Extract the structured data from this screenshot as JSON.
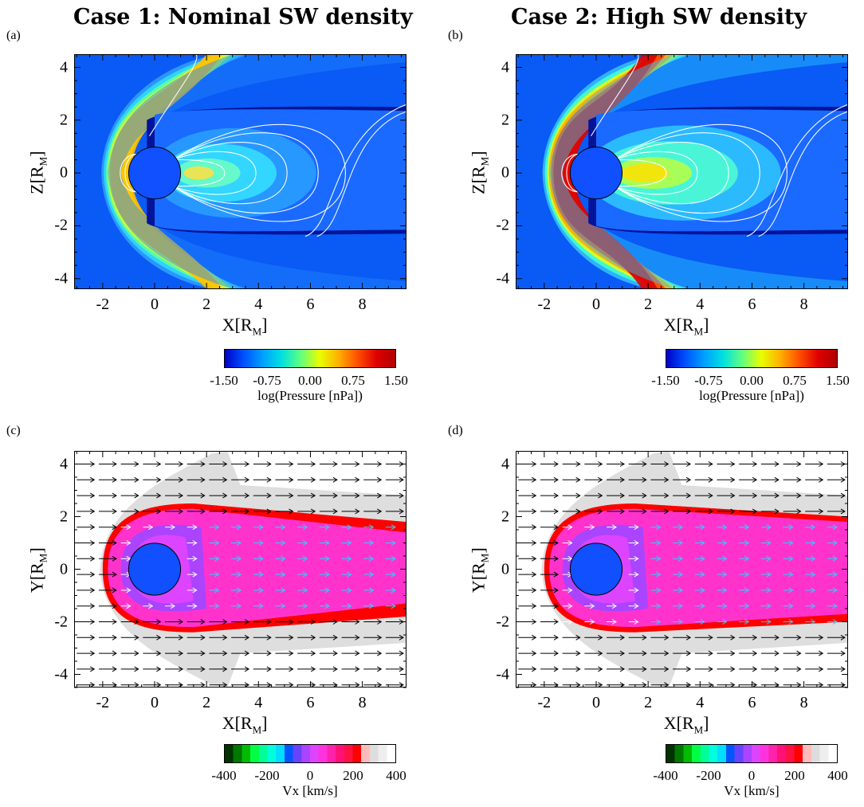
{
  "titles": {
    "case1": "Case 1: Nominal SW density",
    "case2": "Case 2: High SW density"
  },
  "colorbars": {
    "pressure": {
      "ticks": [
        "-1.50",
        "-0.75",
        "0.00",
        "0.75",
        "1.50"
      ],
      "title": "log(Pressure [nPa])",
      "colors": [
        "#0000c8",
        "#0050ff",
        "#00a0ff",
        "#00e0e0",
        "#60ff80",
        "#e8ff00",
        "#ffb000",
        "#ff5000",
        "#e00000",
        "#b00000"
      ]
    },
    "velocity": {
      "ticks": [
        "-400",
        "-200",
        "0",
        "200",
        "400"
      ],
      "title": "Vx [km/s]",
      "colors": [
        "#003300",
        "#007700",
        "#00bb00",
        "#00ff44",
        "#00ff99",
        "#00ffdd",
        "#00ddff",
        "#0055ff",
        "#6644ff",
        "#aa44ff",
        "#dd44ff",
        "#ff33dd",
        "#ff22aa",
        "#ff1177",
        "#ff1144",
        "#ff0000",
        "#ffbbbb",
        "#dddddd",
        "#eeeeee",
        "#ffffff"
      ]
    }
  },
  "chart_data": [
    {
      "id": "a",
      "panel_label": "(a)",
      "type": "heatmap",
      "title": "Case 1: Nominal SW density",
      "xlabel": "X[R_M]",
      "ylabel": "Z[R_M]",
      "xlim": [
        -3.1,
        9.7
      ],
      "ylim": [
        -4.4,
        4.5
      ],
      "xticks": [
        -2,
        0,
        2,
        4,
        6,
        8
      ],
      "yticks": [
        -4,
        -2,
        0,
        2,
        4
      ],
      "quantity": "log(Pressure [nPa])",
      "color_range": [
        -1.5,
        1.5
      ],
      "planet_radius": 1,
      "planet_center": [
        0,
        0
      ]
    },
    {
      "id": "b",
      "panel_label": "(b)",
      "type": "heatmap",
      "title": "Case 2: High SW density",
      "xlabel": "X[R_M]",
      "ylabel": "Z[R_M]",
      "xlim": [
        -3.1,
        9.7
      ],
      "ylim": [
        -4.4,
        4.5
      ],
      "xticks": [
        -2,
        0,
        2,
        4,
        6,
        8
      ],
      "yticks": [
        -4,
        -2,
        0,
        2,
        4
      ],
      "quantity": "log(Pressure [nPa])",
      "color_range": [
        -1.5,
        1.5
      ],
      "planet_radius": 1,
      "planet_center": [
        0,
        0
      ]
    },
    {
      "id": "c",
      "panel_label": "(c)",
      "type": "heatmap",
      "xlabel": "X[R_M]",
      "ylabel": "Y[R_M]",
      "xlim": [
        -3.1,
        9.7
      ],
      "ylim": [
        -4.5,
        4.5
      ],
      "xticks": [
        -2,
        0,
        2,
        4,
        6,
        8
      ],
      "yticks": [
        -4,
        -2,
        0,
        2,
        4
      ],
      "quantity": "Vx [km/s]",
      "color_range": [
        -400,
        400
      ],
      "planet_radius": 1,
      "planet_center": [
        0,
        0
      ]
    },
    {
      "id": "d",
      "panel_label": "(d)",
      "type": "heatmap",
      "xlabel": "X[R_M]",
      "ylabel": "Y[R_M]",
      "xlim": [
        -3.1,
        9.7
      ],
      "ylim": [
        -4.5,
        4.5
      ],
      "xticks": [
        -2,
        0,
        2,
        4,
        6,
        8
      ],
      "yticks": [
        -4,
        -2,
        0,
        2,
        4
      ],
      "quantity": "Vx [km/s]",
      "color_range": [
        -400,
        400
      ],
      "planet_radius": 1,
      "planet_center": [
        0,
        0
      ]
    }
  ]
}
